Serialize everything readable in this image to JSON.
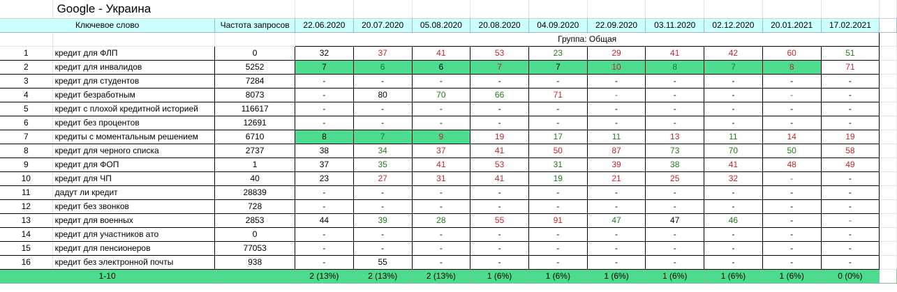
{
  "title": "Google - Украина",
  "headers": {
    "keyword": "Ключевое слово",
    "frequency": "Частота запросов",
    "dates": [
      "22.06.2020",
      "20.07.2020",
      "05.08.2020",
      "20.08.2020",
      "04.09.2020",
      "22.09.2020",
      "03.11.2020",
      "02.12.2020",
      "20.01.2021",
      "17.02.2021"
    ]
  },
  "group_label": "Группа: Общая",
  "colors": {
    "header_bg": "#ccffff",
    "highlight_bg": "#4ddb8f",
    "green_text": "#1e7b1e",
    "red_text": "#c0262d"
  },
  "rows": [
    {
      "num": "1",
      "keyword": "кредит для ФЛП",
      "freq": "0",
      "positions": [
        {
          "v": "32",
          "c": "black",
          "hl": false
        },
        {
          "v": "37",
          "c": "red",
          "hl": false
        },
        {
          "v": "41",
          "c": "red",
          "hl": false
        },
        {
          "v": "53",
          "c": "red",
          "hl": false
        },
        {
          "v": "23",
          "c": "green",
          "hl": false
        },
        {
          "v": "29",
          "c": "red",
          "hl": false
        },
        {
          "v": "41",
          "c": "red",
          "hl": false
        },
        {
          "v": "42",
          "c": "red",
          "hl": false
        },
        {
          "v": "60",
          "c": "red",
          "hl": false
        },
        {
          "v": "51",
          "c": "green",
          "hl": false
        }
      ]
    },
    {
      "num": "2",
      "keyword": "кредит для инвалидов",
      "freq": "5252",
      "positions": [
        {
          "v": "7",
          "c": "black",
          "hl": true
        },
        {
          "v": "6",
          "c": "green",
          "hl": true
        },
        {
          "v": "6",
          "c": "black",
          "hl": true
        },
        {
          "v": "7",
          "c": "red",
          "hl": true
        },
        {
          "v": "7",
          "c": "black",
          "hl": true
        },
        {
          "v": "10",
          "c": "red",
          "hl": true
        },
        {
          "v": "8",
          "c": "green",
          "hl": true
        },
        {
          "v": "7",
          "c": "green",
          "hl": true
        },
        {
          "v": "8",
          "c": "red",
          "hl": true
        },
        {
          "v": "71",
          "c": "red",
          "hl": false
        }
      ]
    },
    {
      "num": "3",
      "keyword": "кредит для студентов",
      "freq": "7284",
      "positions": [
        {
          "v": "-",
          "c": "black",
          "hl": false
        },
        {
          "v": "-",
          "c": "black",
          "hl": false
        },
        {
          "v": "-",
          "c": "black",
          "hl": false
        },
        {
          "v": "-",
          "c": "black",
          "hl": false
        },
        {
          "v": "-",
          "c": "black",
          "hl": false
        },
        {
          "v": "-",
          "c": "black",
          "hl": false
        },
        {
          "v": "-",
          "c": "black",
          "hl": false
        },
        {
          "v": "-",
          "c": "black",
          "hl": false
        },
        {
          "v": "-",
          "c": "black",
          "hl": false
        },
        {
          "v": "-",
          "c": "black",
          "hl": false
        }
      ]
    },
    {
      "num": "4",
      "keyword": "кредит безработным",
      "freq": "8073",
      "positions": [
        {
          "v": "-",
          "c": "black",
          "hl": false
        },
        {
          "v": "80",
          "c": "black",
          "hl": false
        },
        {
          "v": "70",
          "c": "green",
          "hl": false
        },
        {
          "v": "66",
          "c": "green",
          "hl": false
        },
        {
          "v": "71",
          "c": "red",
          "hl": false
        },
        {
          "v": "-",
          "c": "green",
          "hl": false
        },
        {
          "v": "-",
          "c": "black",
          "hl": false
        },
        {
          "v": "-",
          "c": "black",
          "hl": false
        },
        {
          "v": "-",
          "c": "green",
          "hl": false
        },
        {
          "v": "-",
          "c": "black",
          "hl": false
        }
      ]
    },
    {
      "num": "5",
      "keyword": "кредит с плохой кредитной историей",
      "freq": "116617",
      "positions": [
        {
          "v": "-",
          "c": "black",
          "hl": false
        },
        {
          "v": "-",
          "c": "black",
          "hl": false
        },
        {
          "v": "-",
          "c": "black",
          "hl": false
        },
        {
          "v": "-",
          "c": "black",
          "hl": false
        },
        {
          "v": "-",
          "c": "black",
          "hl": false
        },
        {
          "v": "-",
          "c": "black",
          "hl": false
        },
        {
          "v": "-",
          "c": "black",
          "hl": false
        },
        {
          "v": "-",
          "c": "black",
          "hl": false
        },
        {
          "v": "-",
          "c": "black",
          "hl": false
        },
        {
          "v": "-",
          "c": "black",
          "hl": false
        }
      ]
    },
    {
      "num": "6",
      "keyword": "кредит без процентов",
      "freq": "12691",
      "positions": [
        {
          "v": "-",
          "c": "black",
          "hl": false
        },
        {
          "v": "-",
          "c": "black",
          "hl": false
        },
        {
          "v": "-",
          "c": "black",
          "hl": false
        },
        {
          "v": "-",
          "c": "black",
          "hl": false
        },
        {
          "v": "-",
          "c": "black",
          "hl": false
        },
        {
          "v": "-",
          "c": "black",
          "hl": false
        },
        {
          "v": "-",
          "c": "black",
          "hl": false
        },
        {
          "v": "-",
          "c": "black",
          "hl": false
        },
        {
          "v": "-",
          "c": "black",
          "hl": false
        },
        {
          "v": "-",
          "c": "black",
          "hl": false
        }
      ]
    },
    {
      "num": "7",
      "keyword": "кредиты с моментальным решением",
      "freq": "6710",
      "positions": [
        {
          "v": "8",
          "c": "black",
          "hl": true
        },
        {
          "v": "7",
          "c": "green",
          "hl": true
        },
        {
          "v": "9",
          "c": "red",
          "hl": true
        },
        {
          "v": "19",
          "c": "red",
          "hl": false
        },
        {
          "v": "17",
          "c": "green",
          "hl": false
        },
        {
          "v": "11",
          "c": "green",
          "hl": false
        },
        {
          "v": "13",
          "c": "red",
          "hl": false
        },
        {
          "v": "11",
          "c": "green",
          "hl": false
        },
        {
          "v": "14",
          "c": "red",
          "hl": false
        },
        {
          "v": "19",
          "c": "red",
          "hl": false
        }
      ]
    },
    {
      "num": "8",
      "keyword": "кредит для черного списка",
      "freq": "2737",
      "positions": [
        {
          "v": "38",
          "c": "black",
          "hl": false
        },
        {
          "v": "34",
          "c": "green",
          "hl": false
        },
        {
          "v": "37",
          "c": "red",
          "hl": false
        },
        {
          "v": "41",
          "c": "red",
          "hl": false
        },
        {
          "v": "50",
          "c": "red",
          "hl": false
        },
        {
          "v": "87",
          "c": "red",
          "hl": false
        },
        {
          "v": "73",
          "c": "green",
          "hl": false
        },
        {
          "v": "70",
          "c": "green",
          "hl": false
        },
        {
          "v": "50",
          "c": "green",
          "hl": false
        },
        {
          "v": "58",
          "c": "red",
          "hl": false
        }
      ]
    },
    {
      "num": "9",
      "keyword": "кредит для ФОП",
      "freq": "1",
      "positions": [
        {
          "v": "37",
          "c": "black",
          "hl": false
        },
        {
          "v": "35",
          "c": "green",
          "hl": false
        },
        {
          "v": "41",
          "c": "red",
          "hl": false
        },
        {
          "v": "53",
          "c": "red",
          "hl": false
        },
        {
          "v": "31",
          "c": "green",
          "hl": false
        },
        {
          "v": "39",
          "c": "red",
          "hl": false
        },
        {
          "v": "38",
          "c": "green",
          "hl": false
        },
        {
          "v": "41",
          "c": "red",
          "hl": false
        },
        {
          "v": "48",
          "c": "red",
          "hl": false
        },
        {
          "v": "49",
          "c": "red",
          "hl": false
        }
      ]
    },
    {
      "num": "10",
      "keyword": "кредит для ЧП",
      "freq": "40",
      "positions": [
        {
          "v": "23",
          "c": "black",
          "hl": false
        },
        {
          "v": "27",
          "c": "red",
          "hl": false
        },
        {
          "v": "31",
          "c": "red",
          "hl": false
        },
        {
          "v": "41",
          "c": "red",
          "hl": false
        },
        {
          "v": "19",
          "c": "green",
          "hl": false
        },
        {
          "v": "21",
          "c": "red",
          "hl": false
        },
        {
          "v": "25",
          "c": "red",
          "hl": false
        },
        {
          "v": "32",
          "c": "red",
          "hl": false
        },
        {
          "v": "-",
          "c": "green",
          "hl": false
        },
        {
          "v": "-",
          "c": "black",
          "hl": false
        }
      ]
    },
    {
      "num": "11",
      "keyword": "дадут ли кредит",
      "freq": "28839",
      "positions": [
        {
          "v": "-",
          "c": "black",
          "hl": false
        },
        {
          "v": "-",
          "c": "black",
          "hl": false
        },
        {
          "v": "-",
          "c": "black",
          "hl": false
        },
        {
          "v": "-",
          "c": "black",
          "hl": false
        },
        {
          "v": "-",
          "c": "black",
          "hl": false
        },
        {
          "v": "-",
          "c": "black",
          "hl": false
        },
        {
          "v": "-",
          "c": "black",
          "hl": false
        },
        {
          "v": "-",
          "c": "black",
          "hl": false
        },
        {
          "v": "-",
          "c": "black",
          "hl": false
        },
        {
          "v": "-",
          "c": "black",
          "hl": false
        }
      ]
    },
    {
      "num": "12",
      "keyword": "кредит без звонков",
      "freq": "728",
      "positions": [
        {
          "v": "-",
          "c": "black",
          "hl": false
        },
        {
          "v": "-",
          "c": "black",
          "hl": false
        },
        {
          "v": "-",
          "c": "black",
          "hl": false
        },
        {
          "v": "-",
          "c": "black",
          "hl": false
        },
        {
          "v": "-",
          "c": "black",
          "hl": false
        },
        {
          "v": "-",
          "c": "black",
          "hl": false
        },
        {
          "v": "-",
          "c": "black",
          "hl": false
        },
        {
          "v": "-",
          "c": "black",
          "hl": false
        },
        {
          "v": "-",
          "c": "black",
          "hl": false
        },
        {
          "v": "-",
          "c": "black",
          "hl": false
        }
      ]
    },
    {
      "num": "13",
      "keyword": "кредит для военных",
      "freq": "2853",
      "positions": [
        {
          "v": "44",
          "c": "black",
          "hl": false
        },
        {
          "v": "39",
          "c": "green",
          "hl": false
        },
        {
          "v": "28",
          "c": "green",
          "hl": false
        },
        {
          "v": "55",
          "c": "red",
          "hl": false
        },
        {
          "v": "91",
          "c": "red",
          "hl": false
        },
        {
          "v": "47",
          "c": "green",
          "hl": false
        },
        {
          "v": "47",
          "c": "black",
          "hl": false
        },
        {
          "v": "46",
          "c": "green",
          "hl": false
        },
        {
          "v": "-",
          "c": "black",
          "hl": false
        },
        {
          "v": "-",
          "c": "green",
          "hl": false
        }
      ]
    },
    {
      "num": "14",
      "keyword": "кредит для участников ато",
      "freq": "0",
      "positions": [
        {
          "v": "-",
          "c": "black",
          "hl": false
        },
        {
          "v": "-",
          "c": "black",
          "hl": false
        },
        {
          "v": "-",
          "c": "black",
          "hl": false
        },
        {
          "v": "-",
          "c": "black",
          "hl": false
        },
        {
          "v": "-",
          "c": "black",
          "hl": false
        },
        {
          "v": "-",
          "c": "black",
          "hl": false
        },
        {
          "v": "-",
          "c": "black",
          "hl": false
        },
        {
          "v": "-",
          "c": "black",
          "hl": false
        },
        {
          "v": "-",
          "c": "black",
          "hl": false
        },
        {
          "v": "-",
          "c": "black",
          "hl": false
        }
      ]
    },
    {
      "num": "15",
      "keyword": "кредит для пенсионеров",
      "freq": "77053",
      "positions": [
        {
          "v": "-",
          "c": "black",
          "hl": false
        },
        {
          "v": "-",
          "c": "black",
          "hl": false
        },
        {
          "v": "-",
          "c": "black",
          "hl": false
        },
        {
          "v": "-",
          "c": "black",
          "hl": false
        },
        {
          "v": "-",
          "c": "black",
          "hl": false
        },
        {
          "v": "-",
          "c": "black",
          "hl": false
        },
        {
          "v": "-",
          "c": "black",
          "hl": false
        },
        {
          "v": "-",
          "c": "black",
          "hl": false
        },
        {
          "v": "-",
          "c": "black",
          "hl": false
        },
        {
          "v": "-",
          "c": "black",
          "hl": false
        }
      ]
    },
    {
      "num": "16",
      "keyword": "кредит без электронной почты",
      "freq": "938",
      "positions": [
        {
          "v": "-",
          "c": "black",
          "hl": false
        },
        {
          "v": "55",
          "c": "black",
          "hl": false
        },
        {
          "v": "-",
          "c": "black",
          "hl": false
        },
        {
          "v": "-",
          "c": "black",
          "hl": false
        },
        {
          "v": "-",
          "c": "black",
          "hl": false
        },
        {
          "v": "-",
          "c": "black",
          "hl": false
        },
        {
          "v": "-",
          "c": "black",
          "hl": false
        },
        {
          "v": "-",
          "c": "black",
          "hl": false
        },
        {
          "v": "-",
          "c": "black",
          "hl": false
        },
        {
          "v": "-",
          "c": "black",
          "hl": false
        }
      ]
    }
  ],
  "summary": {
    "label": "1-10",
    "values": [
      "2 (13%)",
      "2 (13%)",
      "2 (13%)",
      "1 (6%)",
      "1 (6%)",
      "1 (6%)",
      "1 (6%)",
      "1 (6%)",
      "1 (6%)",
      "0 (0%)"
    ]
  }
}
